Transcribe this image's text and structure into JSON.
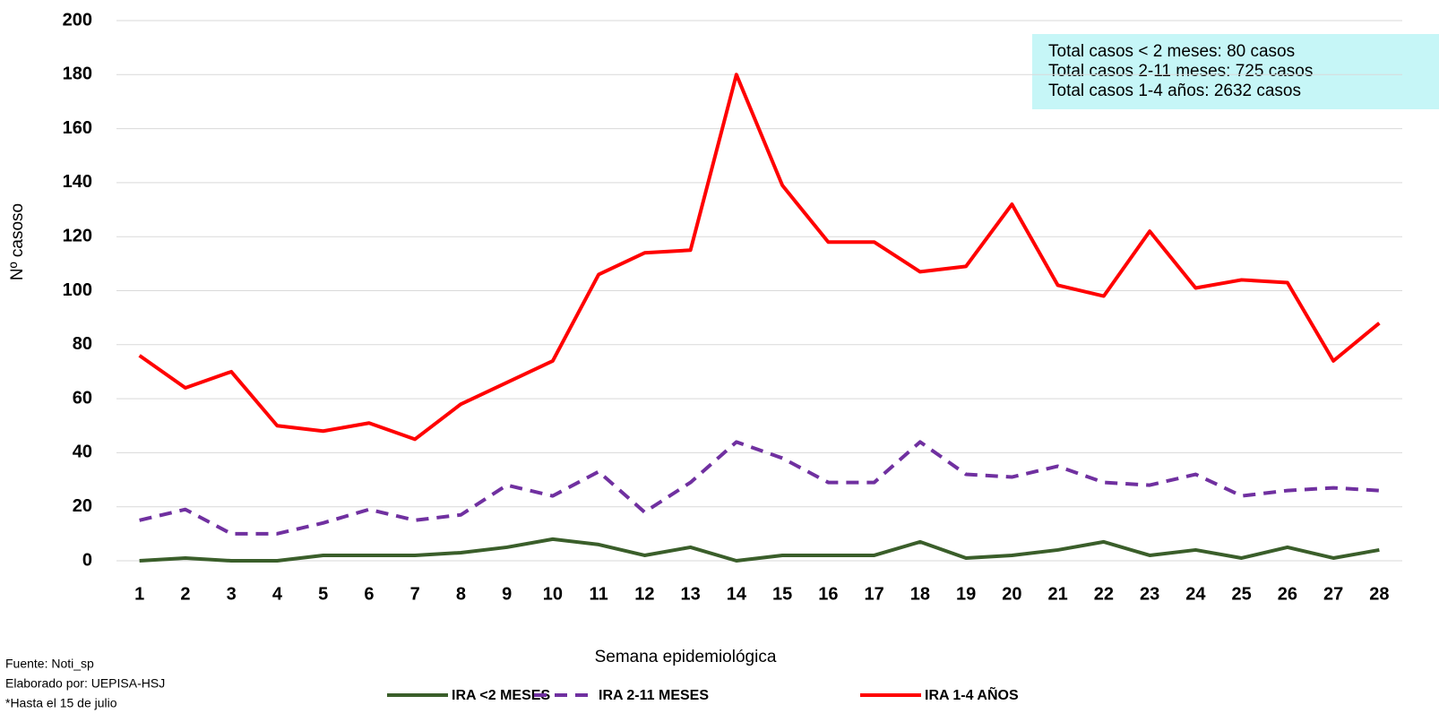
{
  "chart_data": {
    "type": "line",
    "y_label": "Nº casoso",
    "x_label": "Semana epidemiológica",
    "annotations": [
      "Total casos < 2 meses: 80 casos",
      "Total casos 2-11 meses: 725 casos",
      "Total casos 1-4 años: 2632 casos"
    ],
    "notes": [
      "Fuente: Noti_sp",
      "Elaborado por: UEPISA-HSJ",
      "*Hasta el 15 de julio"
    ],
    "categories": [
      "1",
      "2",
      "3",
      "4",
      "5",
      "6",
      "7",
      "8",
      "9",
      "10",
      "11",
      "12",
      "13",
      "14",
      "15",
      "16",
      "17",
      "18",
      "19",
      "20",
      "21",
      "22",
      "23",
      "24",
      "25",
      "26",
      "27",
      "28"
    ],
    "series": [
      {
        "name": "IRA <2 MESES",
        "color": "#3a5e2a",
        "dash": false,
        "values": [
          0,
          1,
          0,
          0,
          2,
          2,
          2,
          3,
          5,
          8,
          6,
          2,
          5,
          0,
          2,
          2,
          2,
          7,
          1,
          2,
          4,
          7,
          2,
          4,
          1,
          5,
          1,
          4
        ]
      },
      {
        "name": "IRA 2-11 MESES",
        "color": "#7030a0",
        "dash": true,
        "values": [
          15,
          19,
          10,
          10,
          14,
          19,
          15,
          17,
          28,
          24,
          33,
          18,
          29,
          44,
          38,
          29,
          29,
          44,
          32,
          31,
          35,
          29,
          28,
          32,
          24,
          26,
          27,
          26
        ]
      },
      {
        "name": "IRA 1-4 AÑOS",
        "color": "#ff0000",
        "dash": false,
        "values": [
          76,
          64,
          70,
          50,
          48,
          51,
          45,
          58,
          66,
          74,
          106,
          114,
          115,
          180,
          139,
          118,
          118,
          107,
          109,
          132,
          102,
          98,
          122,
          101,
          104,
          103,
          74,
          88
        ]
      }
    ],
    "ylim": [
      0,
      200
    ],
    "yticks": [
      0,
      20,
      40,
      60,
      80,
      100,
      120,
      140,
      160,
      180,
      200
    ],
    "grid": true
  }
}
